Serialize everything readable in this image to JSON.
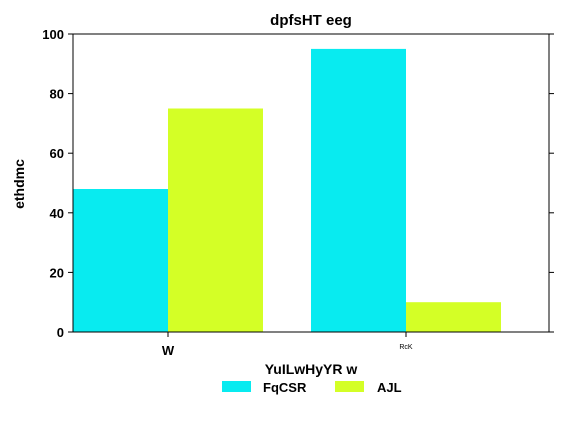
{
  "chart_data": {
    "type": "bar",
    "title": "dpfsHT eeg",
    "xlabel": "YuILwHyYR w",
    "ylabel": "ethdmc",
    "categories": [
      "W",
      "RcK"
    ],
    "series": [
      {
        "name": "FqCSR",
        "values": [
          48,
          95
        ],
        "color": "#08ebf0"
      },
      {
        "name": "AJL",
        "values": [
          75,
          10
        ],
        "color": "#d4ff26"
      }
    ],
    "ylim": [
      0,
      100
    ],
    "yticks": [
      0,
      20,
      40,
      60,
      80,
      100
    ],
    "grid": false,
    "legend_position": "bottom-center"
  }
}
